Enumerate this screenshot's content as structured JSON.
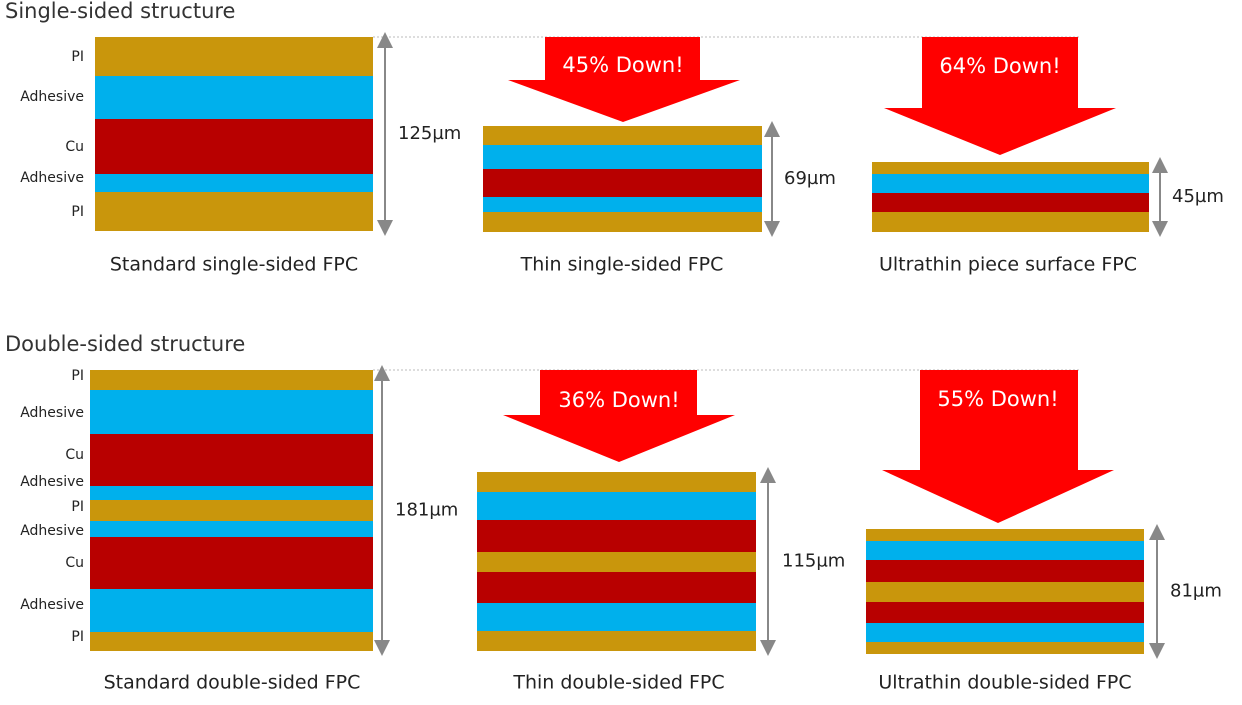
{
  "sections": [
    {
      "title": "Single-sided structure",
      "layer_labels": [
        "PI",
        "Adhesive",
        "Cu",
        "Adhesive",
        "PI"
      ],
      "items": [
        {
          "caption": "Standard single-sided FPC",
          "thickness": "125µm"
        },
        {
          "caption": "Thin single-sided FPC",
          "thickness": "69µm",
          "reduction": "45% Down!"
        },
        {
          "caption": "Ultrathin piece surface FPC",
          "thickness": "45µm",
          "reduction": "64% Down!"
        }
      ]
    },
    {
      "title": "Double-sided structure",
      "layer_labels": [
        "PI",
        "Adhesive",
        "Cu",
        "Adhesive",
        "PI",
        "Adhesive",
        "Cu",
        "Adhesive",
        "PI"
      ],
      "items": [
        {
          "caption": "Standard double-sided FPC",
          "thickness": "181µm"
        },
        {
          "caption": "Thin double-sided FPC",
          "thickness": "115µm",
          "reduction": "36% Down!"
        },
        {
          "caption": "Ultrathin double-sided FPC",
          "thickness": "81µm",
          "reduction": "55% Down!"
        }
      ]
    }
  ]
}
